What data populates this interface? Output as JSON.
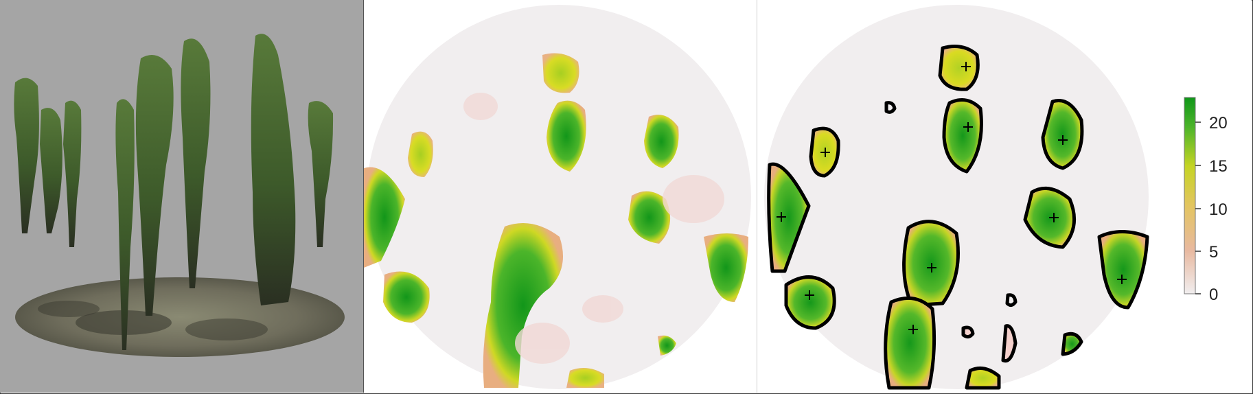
{
  "colors": {
    "photo_background": "#a5a5a5",
    "canopy_high": "#1a9a1a",
    "canopy_mid": "#d8dc1e",
    "canopy_low": "#e6b07a",
    "ground": "#f0eced",
    "outline": "#000000"
  },
  "legend": {
    "ticks": [
      "0",
      "5",
      "10",
      "15",
      "20"
    ]
  },
  "icons": {
    "treetop_marker": "plus-marker"
  }
}
